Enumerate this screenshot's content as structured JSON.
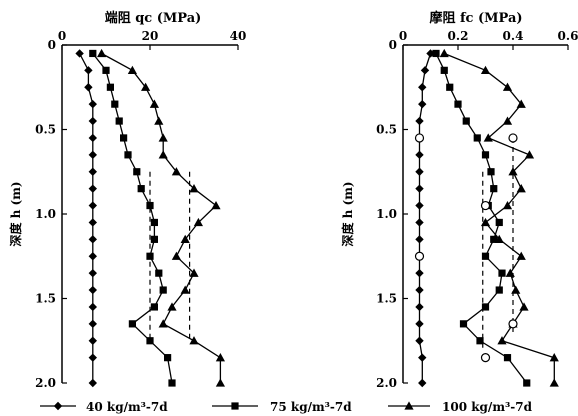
{
  "chart_data": [
    {
      "type": "line",
      "title": "端阻 qc (MPa)",
      "ylabel": "深度 h (m)",
      "xlim": [
        0,
        40
      ],
      "ylim": [
        0,
        2.0
      ],
      "x_ticks": [
        "0",
        "20",
        "40"
      ],
      "y_ticks": [
        "0",
        "0.5",
        "1.0",
        "1.5",
        "2.0"
      ],
      "series": [
        {
          "name": "40 kg/m³-7d",
          "marker": "diamond",
          "x": [
            4,
            6,
            6,
            7,
            7,
            7,
            7,
            7,
            7,
            7,
            7,
            7,
            7,
            7,
            7,
            7,
            7,
            7,
            7,
            7
          ],
          "y": [
            0.05,
            0.15,
            0.25,
            0.35,
            0.45,
            0.55,
            0.65,
            0.75,
            0.85,
            0.95,
            1.05,
            1.15,
            1.25,
            1.35,
            1.45,
            1.55,
            1.65,
            1.75,
            1.85,
            2.0
          ]
        },
        {
          "name": "75 kg/m³-7d",
          "marker": "square",
          "x": [
            7,
            10,
            11,
            12,
            13,
            14,
            15,
            17,
            18,
            20,
            21,
            21,
            20,
            22,
            23,
            21,
            16,
            20,
            24,
            25
          ],
          "y": [
            0.05,
            0.15,
            0.25,
            0.35,
            0.45,
            0.55,
            0.65,
            0.75,
            0.85,
            0.95,
            1.05,
            1.15,
            1.25,
            1.35,
            1.45,
            1.55,
            1.65,
            1.75,
            1.85,
            2.0
          ]
        },
        {
          "name": "100 kg/m³-7d",
          "marker": "triangle",
          "x": [
            9,
            16,
            19,
            21,
            22,
            23,
            23,
            26,
            30,
            35,
            31,
            28,
            26,
            30,
            28,
            25,
            23,
            30,
            36,
            36
          ],
          "y": [
            0.05,
            0.15,
            0.25,
            0.35,
            0.45,
            0.55,
            0.65,
            0.75,
            0.85,
            0.95,
            1.05,
            1.15,
            1.25,
            1.35,
            1.45,
            1.55,
            1.65,
            1.75,
            1.85,
            2.0
          ]
        }
      ],
      "dashed_lines": [
        {
          "x": 20,
          "y_range": [
            0.75,
            1.75
          ]
        },
        {
          "x": 29,
          "y_range": [
            0.75,
            1.75
          ]
        }
      ],
      "grid": false
    },
    {
      "type": "line",
      "title": "摩阻 fc (MPa)",
      "ylabel": "深度 h (m)",
      "xlim": [
        0,
        0.6
      ],
      "ylim": [
        0,
        2.0
      ],
      "x_ticks": [
        "0",
        "0.2",
        "0.4",
        "0.6"
      ],
      "y_ticks": [
        "0",
        "0.5",
        "1.0",
        "1.5",
        "2.0"
      ],
      "series": [
        {
          "name": "40 kg/m³-7d",
          "marker": "diamond",
          "x": [
            0.1,
            0.08,
            0.07,
            0.07,
            0.06,
            0.06,
            0.06,
            0.06,
            0.06,
            0.06,
            0.06,
            0.06,
            0.06,
            0.06,
            0.06,
            0.06,
            0.06,
            0.06,
            0.07,
            0.07
          ],
          "y": [
            0.05,
            0.15,
            0.25,
            0.35,
            0.45,
            0.55,
            0.65,
            0.75,
            0.85,
            0.95,
            1.05,
            1.15,
            1.25,
            1.35,
            1.45,
            1.55,
            1.65,
            1.75,
            1.85,
            2.0
          ]
        },
        {
          "name": "75 kg/m³-7d",
          "marker": "square",
          "x": [
            0.12,
            0.15,
            0.17,
            0.2,
            0.23,
            0.27,
            0.3,
            0.32,
            0.33,
            0.31,
            0.35,
            0.33,
            0.3,
            0.36,
            0.35,
            0.3,
            0.22,
            0.28,
            0.38,
            0.45
          ],
          "y": [
            0.05,
            0.15,
            0.25,
            0.35,
            0.45,
            0.55,
            0.65,
            0.75,
            0.85,
            0.95,
            1.05,
            1.15,
            1.25,
            1.35,
            1.45,
            1.55,
            1.65,
            1.75,
            1.85,
            2.0
          ]
        },
        {
          "name": "100 kg/m³-7d",
          "marker": "triangle",
          "x": [
            0.15,
            0.3,
            0.38,
            0.43,
            0.38,
            0.31,
            0.46,
            0.4,
            0.43,
            0.38,
            0.3,
            0.35,
            0.43,
            0.39,
            0.41,
            0.44,
            0.4,
            0.36,
            0.55,
            0.55
          ],
          "y": [
            0.05,
            0.15,
            0.25,
            0.35,
            0.45,
            0.55,
            0.65,
            0.75,
            0.85,
            0.95,
            1.05,
            1.15,
            1.25,
            1.35,
            1.45,
            1.55,
            1.65,
            1.75,
            1.85,
            2.0
          ]
        }
      ],
      "dashed_lines": [
        {
          "x": 0.29,
          "y_range": [
            0.75,
            1.8
          ]
        },
        {
          "x": 0.4,
          "y_range": [
            0.55,
            1.7
          ]
        }
      ],
      "open_circles": [
        {
          "x": 0.06,
          "y": 0.55
        },
        {
          "x": 0.06,
          "y": 1.25
        },
        {
          "x": 0.3,
          "y": 0.95
        },
        {
          "x": 0.3,
          "y": 1.85
        },
        {
          "x": 0.4,
          "y": 0.55
        },
        {
          "x": 0.4,
          "y": 1.65
        }
      ],
      "grid": false
    }
  ],
  "legend": [
    {
      "label": "40 kg/m³-7d",
      "marker": "diamond"
    },
    {
      "label": "75 kg/m³-7d",
      "marker": "square"
    },
    {
      "label": "100 kg/m³-7d",
      "marker": "triangle"
    }
  ]
}
